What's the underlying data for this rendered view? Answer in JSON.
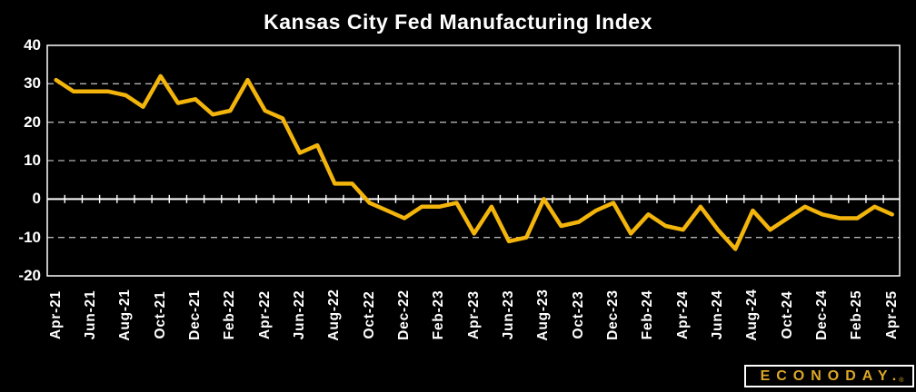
{
  "title": "Kansas City Fed Manufacturing Index",
  "logo": {
    "text": "ECONODAY.",
    "registered_mark": "®"
  },
  "colors": {
    "background": "#000000",
    "line": "#F3B50C",
    "text": "#FFFFFF",
    "gridline": "#B3B3B3",
    "axis": "#FFFFFF",
    "logo_text": "#DCA628",
    "logo_border": "#FFFFFF"
  },
  "chart_data": {
    "type": "line",
    "title": "Kansas City Fed Manufacturing Index",
    "xlabel": "",
    "ylabel": "",
    "legend": "none",
    "grid": "horizontal-dashed",
    "zero_axis_solid": true,
    "ylim": [
      -20,
      40
    ],
    "y_ticks": [
      40,
      30,
      20,
      10,
      0,
      -10,
      -20
    ],
    "x_tick_step": 2,
    "x": [
      "Apr-21",
      "May-21",
      "Jun-21",
      "Jul-21",
      "Aug-21",
      "Sep-21",
      "Oct-21",
      "Nov-21",
      "Dec-21",
      "Jan-22",
      "Feb-22",
      "Mar-22",
      "Apr-22",
      "May-22",
      "Jun-22",
      "Jul-22",
      "Aug-22",
      "Sep-22",
      "Oct-22",
      "Nov-22",
      "Dec-22",
      "Jan-23",
      "Feb-23",
      "Mar-23",
      "Apr-23",
      "May-23",
      "Jun-23",
      "Jul-23",
      "Aug-23",
      "Sep-23",
      "Oct-23",
      "Nov-23",
      "Dec-23",
      "Jan-24",
      "Feb-24",
      "Mar-24",
      "Apr-24",
      "May-24",
      "Jun-24",
      "Jul-24",
      "Aug-24",
      "Sep-24",
      "Oct-24",
      "Nov-24",
      "Dec-24",
      "Jan-25",
      "Feb-25",
      "Mar-25",
      "Apr-25"
    ],
    "values": [
      31,
      28,
      28,
      28,
      27,
      24,
      32,
      25,
      26,
      22,
      23,
      31,
      23,
      21,
      12,
      14,
      4,
      4,
      -1,
      -3,
      -5,
      -2,
      -2,
      -1,
      -9,
      -2,
      -11,
      -10,
      0,
      -7,
      -6,
      -3,
      -1,
      -9,
      -4,
      -7,
      -8,
      -2,
      -8,
      -13,
      -3,
      -8,
      -5,
      -2,
      -4,
      -5,
      -5,
      -2,
      -4
    ]
  }
}
